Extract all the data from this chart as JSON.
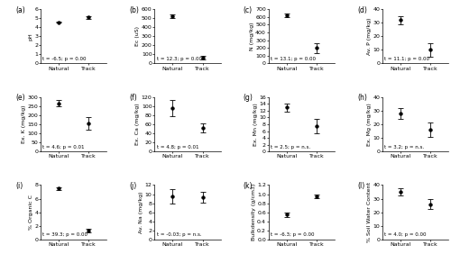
{
  "subplots": [
    {
      "label": "(a)",
      "ylabel": "pH",
      "natural_mean": 4.55,
      "natural_err": 0.06,
      "track_mean": 5.1,
      "track_err": 0.15,
      "ylim": [
        0.0,
        6.0
      ],
      "yticks": [
        0.0,
        1.0,
        2.0,
        3.0,
        4.0,
        5.0,
        6.0
      ],
      "sig_text": "t = -6.5; p = 0.00"
    },
    {
      "label": "(b)",
      "ylabel": "Ec (uS)",
      "natural_mean": 520,
      "natural_err": 20,
      "track_mean": 65,
      "track_err": 18,
      "ylim": [
        0,
        600
      ],
      "yticks": [
        0,
        100,
        200,
        300,
        400,
        500,
        600
      ],
      "sig_text": "t = 12.3; p = 0.00"
    },
    {
      "label": "(c)",
      "ylabel": "N (mg/kg)",
      "natural_mean": 620,
      "natural_err": 20,
      "track_mean": 200,
      "track_err": 65,
      "ylim": [
        0,
        700
      ],
      "yticks": [
        0,
        100,
        200,
        300,
        400,
        500,
        600,
        700
      ],
      "sig_text": "t = 13.1; p = 0.00"
    },
    {
      "label": "(d)",
      "ylabel": "Av. P (mg/kg)",
      "natural_mean": 32,
      "natural_err": 3,
      "track_mean": 10,
      "track_err": 5,
      "ylim": [
        0,
        40
      ],
      "yticks": [
        0,
        10,
        20,
        30,
        40
      ],
      "sig_text": "t = 11.1; p = 0.00"
    },
    {
      "label": "(e)",
      "ylabel": "Ex. K (mg/kg)",
      "natural_mean": 265,
      "natural_err": 18,
      "track_mean": 155,
      "track_err": 35,
      "ylim": [
        0,
        300
      ],
      "yticks": [
        0,
        50,
        100,
        150,
        200,
        250,
        300
      ],
      "sig_text": "t = 4.6; p = 0.01"
    },
    {
      "label": "(f)",
      "ylabel": "Ex. Ca (mg/kg)",
      "natural_mean": 95,
      "natural_err": 18,
      "track_mean": 52,
      "track_err": 10,
      "ylim": [
        0,
        120
      ],
      "yticks": [
        0,
        20,
        40,
        60,
        80,
        100,
        120
      ],
      "sig_text": "t = 4.8; p = 0.01"
    },
    {
      "label": "(g)",
      "ylabel": "Ex. Mn (mg/kg)",
      "natural_mean": 13.0,
      "natural_err": 1.2,
      "track_mean": 7.5,
      "track_err": 2.2,
      "ylim": [
        0,
        16
      ],
      "yticks": [
        0,
        2,
        4,
        6,
        8,
        10,
        12,
        14,
        16
      ],
      "sig_text": "t = 2.5; p = n.s."
    },
    {
      "label": "(h)",
      "ylabel": "Ex. Mg (mg/kg)",
      "natural_mean": 28,
      "natural_err": 4,
      "track_mean": 16,
      "track_err": 5,
      "ylim": [
        0,
        40
      ],
      "yticks": [
        0,
        10,
        20,
        30,
        40
      ],
      "sig_text": "t = 3.2; p = n.s."
    },
    {
      "label": "(i)",
      "ylabel": "% Organic C",
      "natural_mean": 7.5,
      "natural_err": 0.2,
      "track_mean": 1.3,
      "track_err": 0.22,
      "ylim": [
        0,
        8
      ],
      "yticks": [
        0,
        2,
        4,
        6,
        8
      ],
      "sig_text": "t = 39.3; p = 0.00"
    },
    {
      "label": "(j)",
      "ylabel": "Av. Na (mg/kg)",
      "natural_mean": 9.5,
      "natural_err": 1.5,
      "track_mean": 9.3,
      "track_err": 1.2,
      "ylim": [
        0,
        12
      ],
      "yticks": [
        0,
        2,
        4,
        6,
        8,
        10,
        12
      ],
      "sig_text": "t = -0.03; p = n.s."
    },
    {
      "label": "(k)",
      "ylabel": "Bulkdensity (g/cm3)",
      "natural_mean": 0.55,
      "natural_err": 0.05,
      "track_mean": 0.95,
      "track_err": 0.04,
      "ylim": [
        0,
        1.2
      ],
      "yticks": [
        0.0,
        0.2,
        0.4,
        0.6,
        0.8,
        1.0,
        1.2
      ],
      "sig_text": "t = -6.3; p = 0.00"
    },
    {
      "label": "(l)",
      "ylabel": "% Soil Water Content",
      "natural_mean": 35,
      "natural_err": 2.5,
      "track_mean": 26,
      "track_err": 3.5,
      "ylim": [
        0,
        40
      ],
      "yticks": [
        0,
        10,
        20,
        30,
        40
      ],
      "sig_text": "t = 4.0; p = 0.00"
    }
  ],
  "xticklabels": [
    "Natural",
    "Track"
  ],
  "marker": "o",
  "markersize": 2.5,
  "capsize": 2,
  "linewidth": 0.6,
  "color": "black",
  "fontsize_label": 4.5,
  "fontsize_tick": 4.5,
  "fontsize_sig": 4.0,
  "fontsize_panel": 5.5
}
